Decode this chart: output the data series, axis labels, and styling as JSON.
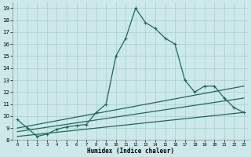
{
  "xlabel": "Humidex (Indice chaleur)",
  "bg_color": "#cce8e8",
  "grid_color": "#aacfcf",
  "line_color": "#1a6b5a",
  "xlim": [
    -0.5,
    23.5
  ],
  "ylim": [
    8,
    19.5
  ],
  "x_ticks": [
    0,
    1,
    2,
    3,
    4,
    5,
    6,
    7,
    8,
    9,
    10,
    11,
    12,
    13,
    14,
    15,
    16,
    17,
    18,
    19,
    20,
    21,
    22,
    23
  ],
  "y_ticks": [
    8,
    9,
    10,
    11,
    12,
    13,
    14,
    15,
    16,
    17,
    18,
    19
  ],
  "series1_x": [
    0,
    1,
    2,
    3,
    4,
    5,
    6,
    7,
    8,
    9,
    10,
    11,
    12,
    13,
    14,
    15,
    16,
    17,
    18,
    19,
    20,
    21,
    22,
    23
  ],
  "series1_y": [
    9.7,
    9.0,
    8.3,
    8.5,
    8.9,
    9.1,
    9.2,
    9.3,
    10.3,
    11.0,
    15.0,
    16.5,
    19.0,
    17.8,
    17.3,
    16.5,
    16.0,
    13.0,
    12.0,
    12.5,
    12.5,
    11.5,
    10.7,
    10.3
  ],
  "series2_x": [
    0,
    23
  ],
  "series2_y": [
    9.0,
    12.5
  ],
  "series3_x": [
    0,
    23
  ],
  "series3_y": [
    8.7,
    11.5
  ],
  "series4_x": [
    0,
    23
  ],
  "series4_y": [
    8.3,
    10.3
  ]
}
